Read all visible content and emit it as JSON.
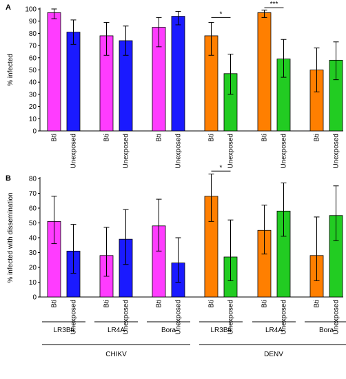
{
  "colors": {
    "magenta": "#ff3cff",
    "blue": "#1a1aff",
    "orange": "#ff7f00",
    "green": "#22cc22"
  },
  "chart_data": [
    {
      "panel": "A",
      "type": "bar",
      "ylabel": "% infected",
      "ylim": [
        0,
        100
      ],
      "yticks": [
        0,
        10,
        20,
        30,
        40,
        50,
        60,
        70,
        80,
        90,
        100
      ],
      "categories": [
        "Bti",
        "Unexposed",
        "Bti",
        "Unexposed",
        "Bti",
        "Unexposed",
        "Bti",
        "Unexposed",
        "Bti",
        "Unexposed",
        "Bti",
        "Unexposed"
      ],
      "values": [
        97,
        81,
        78,
        74,
        85,
        94,
        78,
        47,
        97,
        59,
        50,
        58
      ],
      "err_low": [
        92,
        71,
        62,
        62,
        69,
        87,
        62,
        30,
        93,
        44,
        32,
        42
      ],
      "err_high": [
        100,
        91,
        89,
        86,
        93,
        98,
        89,
        63,
        99,
        75,
        68,
        73
      ],
      "bar_colors": [
        "magenta",
        "blue",
        "magenta",
        "blue",
        "magenta",
        "blue",
        "orange",
        "green",
        "orange",
        "green",
        "orange",
        "green"
      ],
      "significance": [
        {
          "pair": [
            6,
            7
          ],
          "label": "*",
          "y": 93
        },
        {
          "pair": [
            8,
            9
          ],
          "label": "***",
          "y": 101
        }
      ]
    },
    {
      "panel": "B",
      "type": "bar",
      "ylabel": "% infected with dissemination",
      "ylim": [
        0,
        80
      ],
      "yticks": [
        0,
        10,
        20,
        30,
        40,
        50,
        60,
        70,
        80
      ],
      "categories": [
        "Bti",
        "Unexposed",
        "Bti",
        "Unexposed",
        "Bti",
        "Unexposed",
        "Bti",
        "Unexposed",
        "Bti",
        "Unexposed",
        "Bti",
        "Unexposed"
      ],
      "values": [
        51,
        31,
        28,
        39,
        48,
        23,
        68,
        27,
        45,
        58,
        28,
        55
      ],
      "err_low": [
        36,
        16,
        14,
        22,
        31,
        10,
        51,
        11,
        29,
        41,
        11,
        38
      ],
      "err_high": [
        68,
        49,
        47,
        59,
        66,
        40,
        83,
        52,
        62,
        77,
        54,
        75
      ],
      "bar_colors": [
        "magenta",
        "blue",
        "magenta",
        "blue",
        "magenta",
        "blue",
        "orange",
        "green",
        "orange",
        "green",
        "orange",
        "green"
      ],
      "significance": [
        {
          "pair": [
            6,
            7
          ],
          "label": "*",
          "y": 85
        }
      ]
    }
  ],
  "strains": [
    "LR3Bti",
    "LR4A",
    "Bora",
    "LR3Bti",
    "LR4A",
    "Bora"
  ],
  "viruses": [
    "CHIKV",
    "DENV"
  ]
}
